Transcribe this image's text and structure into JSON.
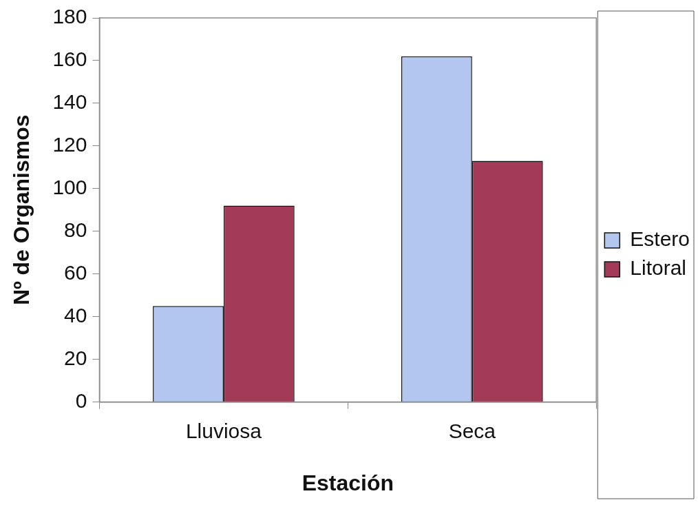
{
  "chart_data": {
    "type": "bar",
    "xlabel": "Estación",
    "ylabel": "Nº de Organismos",
    "categories": [
      "Lluviosa",
      "Seca"
    ],
    "series": [
      {
        "name": "Estero",
        "color": "#b3c6ef",
        "values": [
          45,
          162
        ]
      },
      {
        "name": "Litoral",
        "color": "#a33a57",
        "values": [
          92,
          113
        ]
      }
    ],
    "ylim": [
      0,
      180
    ],
    "yticks": [
      0,
      20,
      40,
      60,
      80,
      100,
      120,
      140,
      160,
      180
    ],
    "grid": false,
    "legend": "right"
  }
}
